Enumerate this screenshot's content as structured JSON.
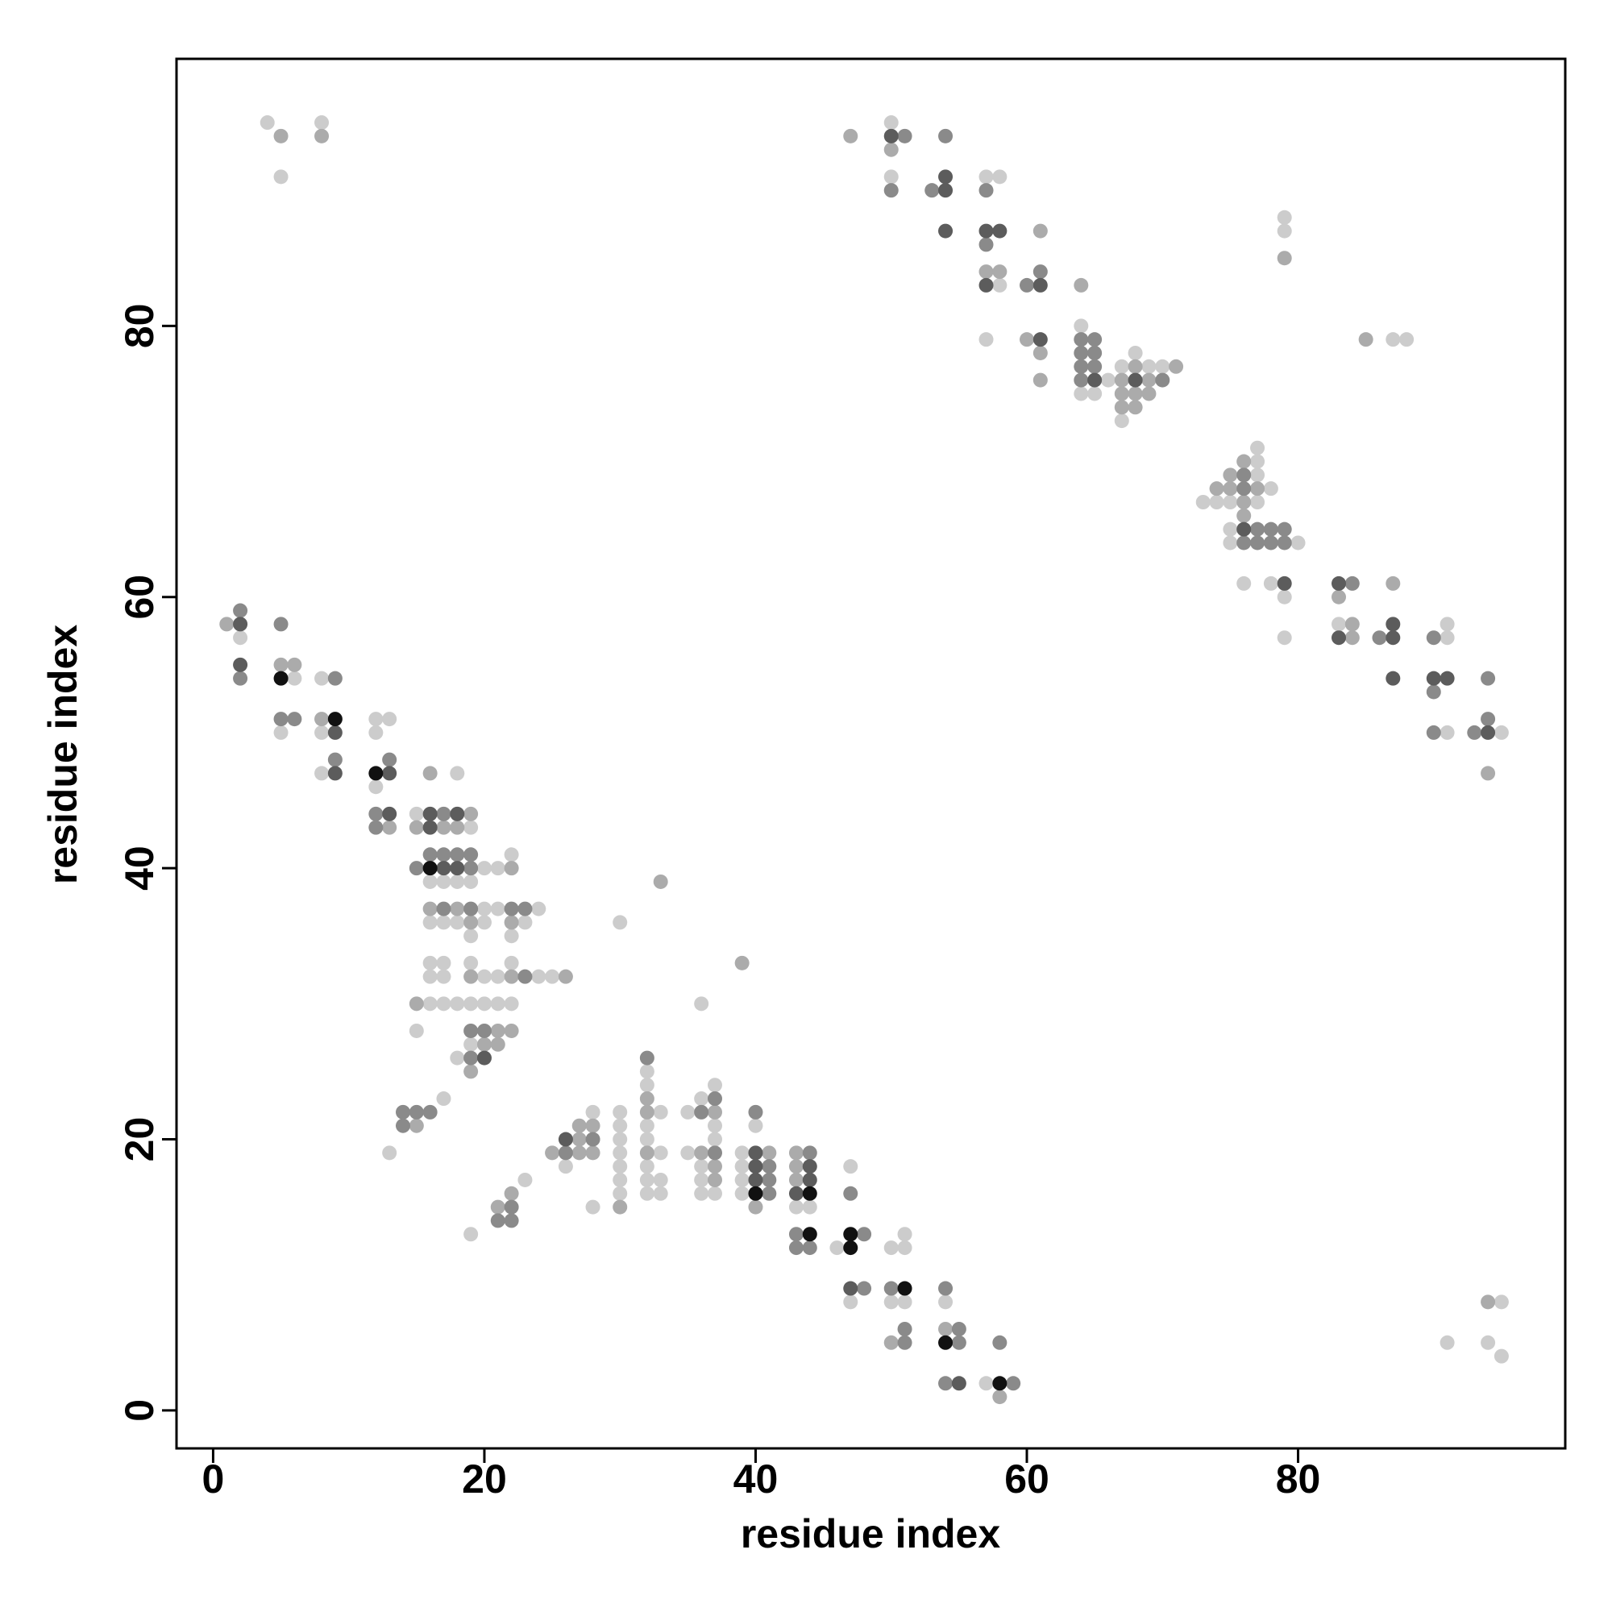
{
  "chart_data": {
    "type": "scatter",
    "xlabel": "residue index",
    "ylabel": "residue index",
    "xlim": [
      -2.7,
      99.7
    ],
    "ylim": [
      -2.8,
      99.7
    ],
    "xticks": [
      0,
      20,
      40,
      60,
      80
    ],
    "yticks": [
      0,
      20,
      40,
      60,
      80
    ],
    "series": [
      {
        "color": "#cccccc",
        "x": [
          4,
          8,
          5,
          50,
          50,
          57,
          58,
          58,
          64,
          57,
          68,
          67,
          69,
          70,
          66,
          64,
          65,
          67,
          77,
          77,
          77,
          78,
          73,
          74,
          75,
          77,
          75,
          75,
          80,
          76,
          78,
          79,
          83,
          91,
          79,
          91,
          91,
          95,
          79,
          79,
          87,
          88,
          95,
          91,
          94,
          95,
          2,
          6,
          8,
          12,
          13,
          5,
          8,
          12,
          8,
          18,
          12,
          15,
          19,
          22,
          16,
          17,
          18,
          19,
          20,
          21,
          20,
          21,
          24,
          16,
          17,
          18,
          20,
          23,
          19,
          22,
          16,
          17,
          19,
          22,
          16,
          17,
          20,
          21,
          24,
          25,
          16,
          17,
          18,
          19,
          20,
          21,
          22,
          15,
          19,
          18,
          17,
          13,
          19,
          23,
          30,
          36,
          32,
          32,
          37,
          36,
          28,
          30,
          33,
          35,
          30,
          32,
          37,
          40,
          30,
          32,
          37,
          30,
          33,
          35,
          39,
          26,
          30,
          32,
          36,
          39,
          30,
          32,
          33,
          36,
          39,
          30,
          32,
          33,
          36,
          37,
          39,
          28,
          43,
          44,
          47,
          51,
          46,
          50,
          51,
          47,
          50,
          51,
          54,
          57
        ],
        "y": [
          95,
          95,
          91,
          95,
          91,
          91,
          91,
          83,
          80,
          79,
          78,
          77,
          77,
          77,
          76,
          75,
          75,
          73,
          71,
          70,
          69,
          68,
          67,
          67,
          67,
          67,
          65,
          64,
          64,
          61,
          61,
          60,
          58,
          58,
          57,
          57,
          50,
          50,
          88,
          87,
          79,
          79,
          8,
          5,
          5,
          4,
          57,
          54,
          54,
          51,
          51,
          50,
          50,
          50,
          47,
          47,
          46,
          44,
          43,
          41,
          39,
          39,
          39,
          39,
          40,
          40,
          37,
          37,
          37,
          36,
          36,
          36,
          36,
          36,
          35,
          35,
          33,
          33,
          33,
          33,
          32,
          32,
          32,
          32,
          32,
          32,
          30,
          30,
          30,
          30,
          30,
          30,
          30,
          28,
          27,
          26,
          23,
          19,
          13,
          17,
          36,
          30,
          25,
          24,
          24,
          23,
          22,
          22,
          22,
          22,
          21,
          21,
          21,
          21,
          20,
          20,
          20,
          19,
          19,
          19,
          19,
          18,
          18,
          18,
          18,
          18,
          17,
          17,
          17,
          17,
          17,
          16,
          16,
          16,
          16,
          16,
          16,
          15,
          15,
          15,
          18,
          13,
          12,
          12,
          12,
          8,
          8,
          8,
          8,
          2
        ]
      },
      {
        "color": "#ababab",
        "x": [
          5,
          8,
          47,
          50,
          61,
          57,
          58,
          64,
          60,
          61,
          68,
          71,
          61,
          67,
          69,
          67,
          68,
          69,
          67,
          68,
          76,
          75,
          74,
          75,
          77,
          76,
          76,
          87,
          83,
          84,
          84,
          94,
          79,
          85,
          94,
          1,
          5,
          6,
          8,
          16,
          13,
          15,
          17,
          18,
          19,
          22,
          16,
          18,
          19,
          22,
          19,
          22,
          26,
          15,
          21,
          22,
          20,
          21,
          19,
          15,
          22,
          21,
          33,
          39,
          32,
          32,
          37,
          27,
          28,
          27,
          25,
          27,
          28,
          32,
          36,
          41,
          43,
          37,
          43,
          37,
          43,
          30,
          40,
          54,
          50,
          58
        ],
        "y": [
          94,
          94,
          94,
          93,
          87,
          84,
          84,
          83,
          79,
          78,
          77,
          77,
          76,
          76,
          76,
          75,
          75,
          75,
          74,
          74,
          70,
          69,
          68,
          68,
          68,
          67,
          66,
          61,
          60,
          58,
          57,
          47,
          85,
          79,
          8,
          58,
          55,
          55,
          51,
          47,
          43,
          43,
          43,
          43,
          44,
          40,
          37,
          37,
          36,
          36,
          32,
          32,
          32,
          30,
          28,
          28,
          27,
          27,
          25,
          21,
          16,
          15,
          39,
          33,
          23,
          22,
          22,
          21,
          21,
          20,
          19,
          19,
          19,
          19,
          19,
          19,
          19,
          18,
          18,
          17,
          17,
          15,
          15,
          6,
          5,
          1
        ]
      },
      {
        "color": "#8a8a8a",
        "x": [
          51,
          54,
          50,
          53,
          57,
          57,
          61,
          60,
          64,
          65,
          64,
          65,
          64,
          65,
          64,
          70,
          76,
          76,
          77,
          78,
          79,
          76,
          77,
          78,
          79,
          84,
          86,
          90,
          94,
          90,
          94,
          90,
          93,
          2,
          5,
          2,
          9,
          5,
          6,
          9,
          13,
          12,
          17,
          12,
          16,
          17,
          18,
          19,
          15,
          19,
          17,
          19,
          22,
          23,
          23,
          19,
          20,
          19,
          14,
          15,
          16,
          14,
          22,
          21,
          22,
          32,
          36,
          37,
          40,
          28,
          26,
          37,
          44,
          41,
          41,
          41,
          47,
          43,
          48,
          43,
          44,
          48,
          50,
          54,
          51,
          55,
          51,
          55,
          58,
          54,
          59
        ],
        "y": [
          94,
          94,
          90,
          90,
          90,
          86,
          84,
          83,
          79,
          79,
          78,
          78,
          77,
          77,
          76,
          76,
          69,
          68,
          65,
          65,
          65,
          64,
          64,
          64,
          64,
          61,
          57,
          57,
          54,
          53,
          51,
          50,
          50,
          59,
          58,
          54,
          54,
          51,
          51,
          48,
          48,
          44,
          44,
          43,
          41,
          41,
          41,
          41,
          40,
          40,
          37,
          37,
          37,
          37,
          32,
          28,
          28,
          26,
          22,
          22,
          22,
          21,
          15,
          14,
          14,
          26,
          22,
          23,
          22,
          20,
          19,
          19,
          19,
          18,
          17,
          16,
          16,
          13,
          13,
          12,
          12,
          9,
          9,
          9,
          6,
          6,
          5,
          5,
          5,
          2,
          2
        ]
      },
      {
        "color": "#5c5c5c",
        "x": [
          50,
          54,
          54,
          54,
          57,
          58,
          57,
          61,
          61,
          65,
          68,
          76,
          79,
          83,
          87,
          83,
          87,
          87,
          90,
          91,
          94,
          2,
          2,
          9,
          9,
          13,
          13,
          16,
          18,
          16,
          17,
          18,
          20,
          26,
          40,
          40,
          44,
          40,
          44,
          43,
          47,
          55
        ],
        "y": [
          94,
          91,
          90,
          87,
          87,
          87,
          83,
          83,
          79,
          76,
          76,
          65,
          61,
          61,
          58,
          57,
          57,
          54,
          54,
          54,
          50,
          58,
          55,
          50,
          47,
          47,
          44,
          44,
          44,
          43,
          40,
          40,
          26,
          20,
          19,
          18,
          18,
          17,
          17,
          16,
          9,
          2
        ]
      },
      {
        "color": "#111111",
        "x": [
          5,
          9,
          12,
          16,
          40,
          44,
          44,
          47,
          47,
          51,
          54,
          58
        ],
        "y": [
          54,
          51,
          47,
          40,
          16,
          16,
          13,
          13,
          12,
          9,
          5,
          2
        ]
      }
    ]
  }
}
